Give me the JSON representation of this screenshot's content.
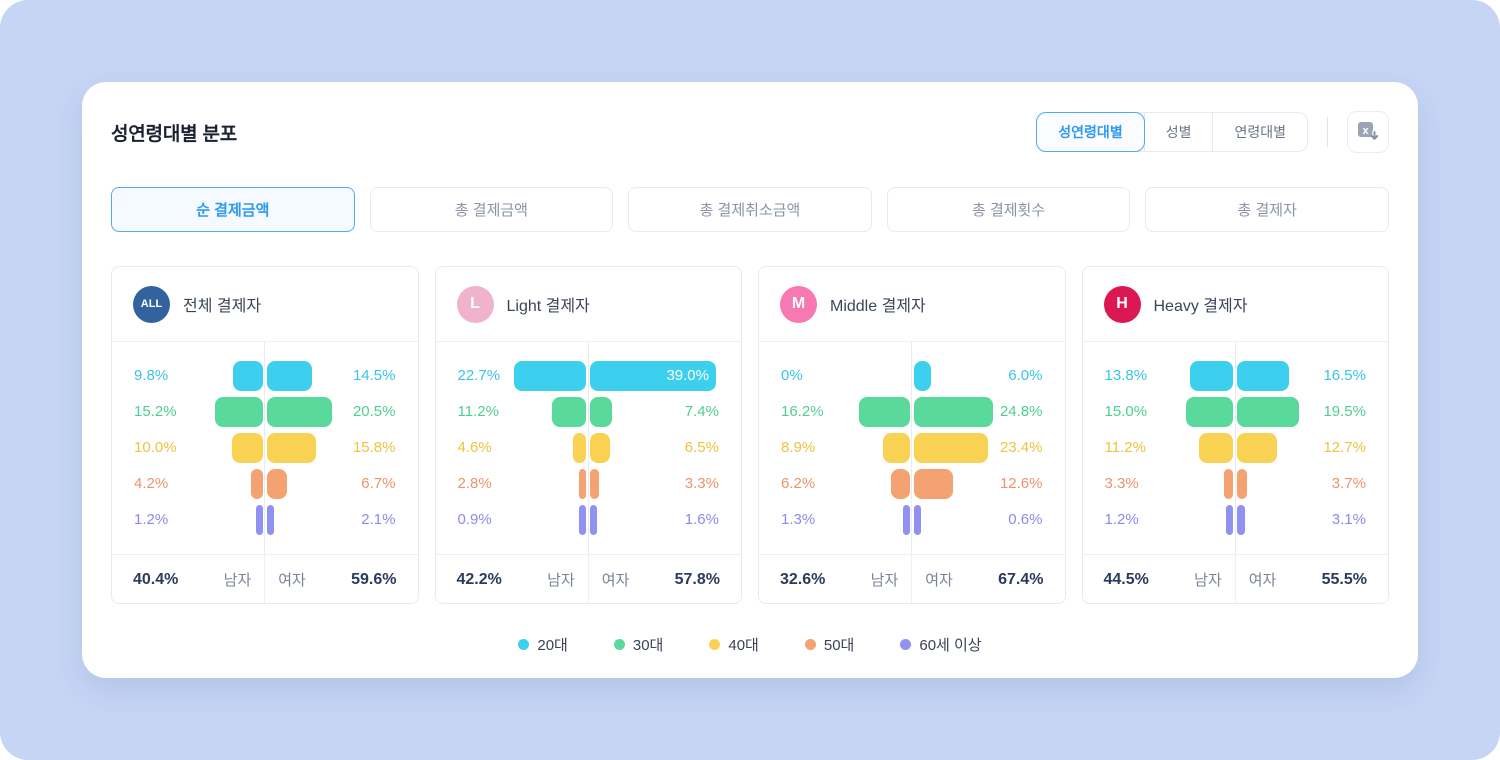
{
  "panel": {
    "title": "성연령대별 분포",
    "view_tabs": [
      {
        "name": "tab-sex-age",
        "label": "성연령대별",
        "active": true
      },
      {
        "name": "tab-sex",
        "label": "성별",
        "active": false
      },
      {
        "name": "tab-age",
        "label": "연령대별",
        "active": false
      }
    ],
    "export_icon": "excel-download-icon",
    "accent_color": "#2E9AF0",
    "page_background": "#C6D5F4"
  },
  "filters": [
    {
      "name": "filter-net-payment-amount",
      "label": "순 결제금액",
      "active": true
    },
    {
      "name": "filter-total-payment-amount",
      "label": "총 결제금액",
      "active": false
    },
    {
      "name": "filter-total-cancel-amount",
      "label": "총 결제취소금액",
      "active": false
    },
    {
      "name": "filter-total-payment-count",
      "label": "총 결제횟수",
      "active": false
    },
    {
      "name": "filter-total-payers",
      "label": "총 결제자",
      "active": false
    }
  ],
  "chart_data": {
    "type": "bar",
    "subtype": "butterfly-population-pyramid",
    "categories": [
      "20대",
      "30대",
      "40대",
      "50대",
      "60세 이상"
    ],
    "axis_max_percent": 40,
    "male_label": "남자",
    "female_label": "여자",
    "age_colors": [
      {
        "label": "20대",
        "bar": "#3DD0EE",
        "text": "#3AC4E6"
      },
      {
        "label": "30대",
        "bar": "#59D99C",
        "text": "#4FCE93"
      },
      {
        "label": "40대",
        "bar": "#F9D254",
        "text": "#EDC43F"
      },
      {
        "label": "50대",
        "bar": "#F5A272",
        "text": "#F0926B"
      },
      {
        "label": "60세 이상",
        "bar": "#9191F2",
        "text": "#8B8BEE"
      }
    ],
    "groups": [
      {
        "badge": "ALL",
        "badge_color": "#33639E",
        "badge_text_size": "small",
        "title": "전체 결제자",
        "male": [
          9.8,
          15.2,
          10.0,
          4.2,
          1.2
        ],
        "female": [
          14.5,
          20.5,
          15.8,
          6.7,
          2.1
        ],
        "male_total": "40.4%",
        "female_total": "59.6%"
      },
      {
        "badge": "L",
        "badge_color": "#F1B2CC",
        "badge_text_size": "big",
        "title": "Light 결제자",
        "male": [
          22.7,
          11.2,
          4.6,
          2.8,
          0.9
        ],
        "female": [
          39.0,
          7.4,
          6.5,
          3.3,
          1.6
        ],
        "male_total": "42.2%",
        "female_total": "57.8%"
      },
      {
        "badge": "M",
        "badge_color": "#F878B2",
        "badge_text_size": "big",
        "title": "Middle 결제자",
        "male": [
          0,
          16.2,
          8.9,
          6.2,
          1.3
        ],
        "female": [
          6.0,
          24.8,
          23.4,
          12.6,
          0.6
        ],
        "male_total": "32.6%",
        "female_total": "67.4%"
      },
      {
        "badge": "H",
        "badge_color": "#DC1853",
        "badge_text_size": "big",
        "title": "Heavy 결제자",
        "male": [
          13.8,
          15.0,
          11.2,
          3.3,
          1.2
        ],
        "female": [
          16.5,
          19.5,
          12.7,
          3.7,
          3.1
        ],
        "male_total": "44.5%",
        "female_total": "55.5%"
      }
    ]
  }
}
